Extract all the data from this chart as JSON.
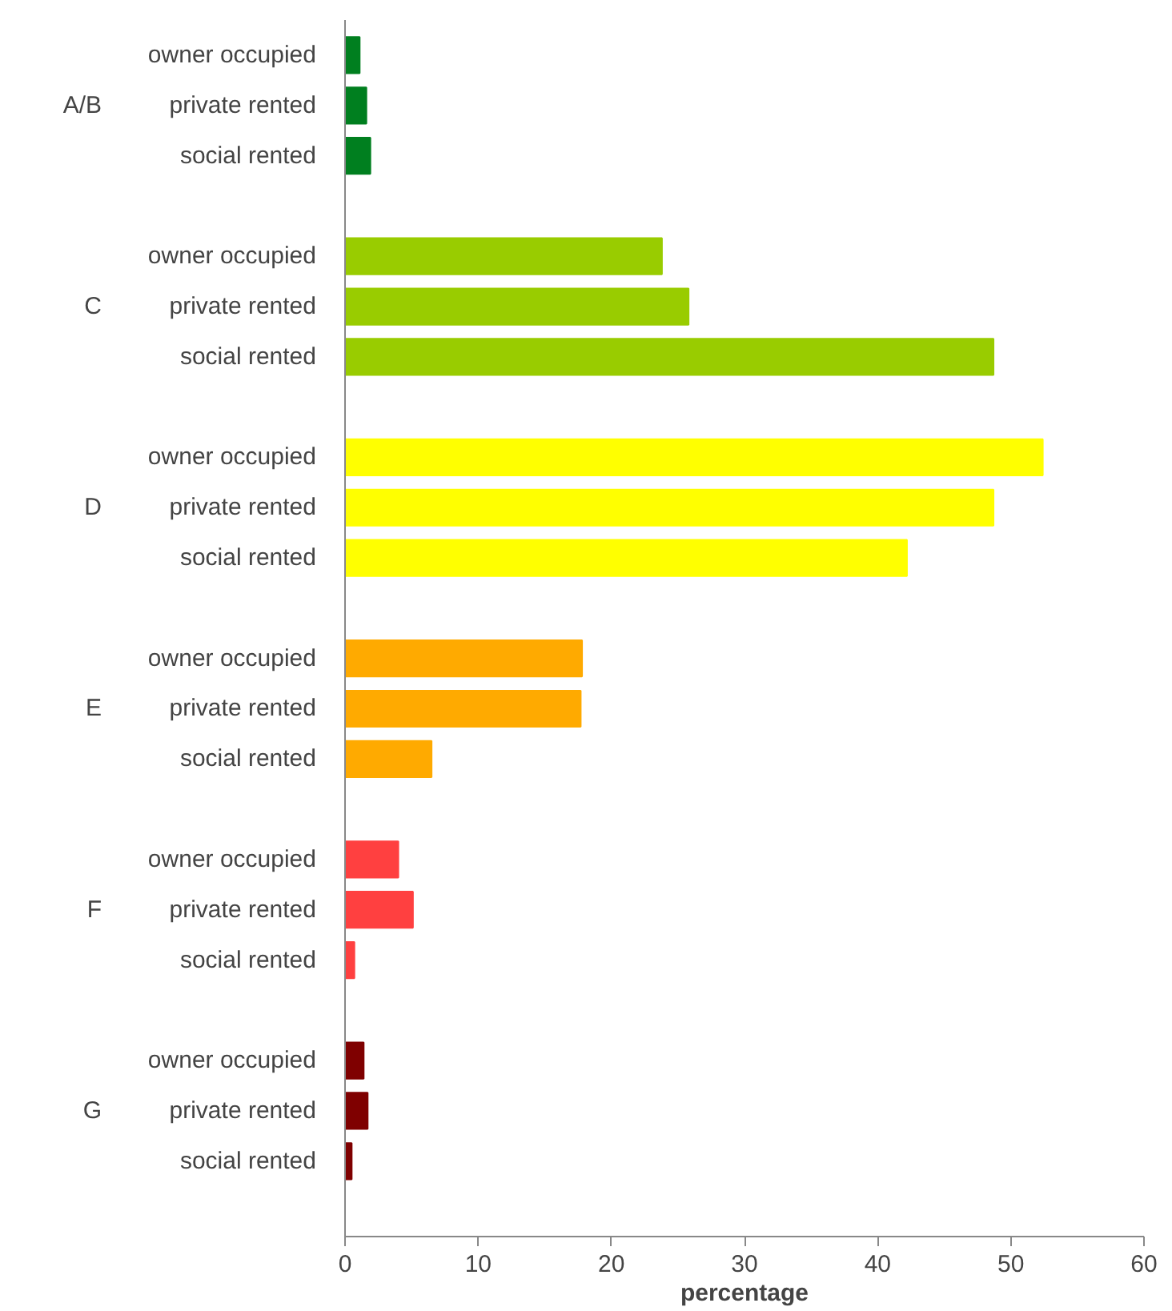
{
  "chart_data": {
    "type": "bar",
    "orientation": "horizontal",
    "xlabel": "percentage",
    "categories": [
      "owner occupied",
      "private rented",
      "social rented",
      "owner occupied",
      "private rented",
      "social rented",
      "owner occupied",
      "private rented",
      "social rented",
      "owner occupied",
      "private rented",
      "social rented",
      "owner occupied",
      "private rented",
      "social rented",
      "owner occupied",
      "private rented",
      "social rented"
    ],
    "series": [
      {
        "color": "#007f1f",
        "values": [
          1.1,
          1.6,
          1.9,
          null,
          null,
          null,
          null,
          null,
          null,
          null,
          null,
          null,
          null,
          null,
          null,
          null,
          null,
          null
        ]
      },
      {
        "color": "#99cc00",
        "values": [
          null,
          null,
          null,
          23.8,
          25.8,
          48.7,
          null,
          null,
          null,
          null,
          null,
          null,
          null,
          null,
          null,
          null,
          null,
          null
        ]
      },
      {
        "color": "#ffff00",
        "values": [
          null,
          null,
          null,
          null,
          null,
          null,
          52.4,
          48.7,
          42.2,
          null,
          null,
          null,
          null,
          null,
          null,
          null,
          null,
          null
        ]
      },
      {
        "color": "#ffaa00",
        "values": [
          null,
          null,
          null,
          null,
          null,
          null,
          null,
          null,
          null,
          17.8,
          17.7,
          6.5,
          null,
          null,
          null,
          null,
          null,
          null
        ]
      },
      {
        "color": "#ff4040",
        "values": [
          null,
          null,
          null,
          null,
          null,
          null,
          null,
          null,
          null,
          null,
          null,
          null,
          4.0,
          5.1,
          0.7,
          null,
          null,
          null
        ]
      },
      {
        "color": "#7f0000",
        "values": [
          null,
          null,
          null,
          null,
          null,
          null,
          null,
          null,
          null,
          null,
          null,
          null,
          null,
          null,
          null,
          1.4,
          1.7,
          0.5
        ]
      }
    ],
    "annotations": [
      "A/B",
      "C",
      "D",
      "E",
      "F",
      "G"
    ],
    "xlim": [
      0,
      60
    ],
    "xticks": [
      0,
      10,
      20,
      30,
      40,
      50,
      60
    ],
    "grid": false
  }
}
